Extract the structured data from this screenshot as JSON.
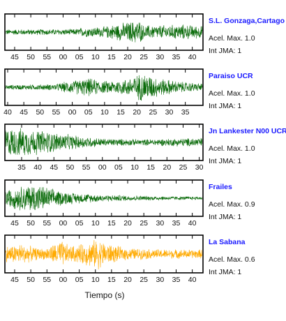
{
  "chart_data": {
    "type": "line",
    "xlabel": "Tiempo (s)",
    "panels": [
      {
        "station": "S.L. Gonzaga,Cartago",
        "acel_label": "Acel. Max. 1.0",
        "jma_label": "Int JMA: 1",
        "color": "#0a6b0a",
        "tick_labels": [
          "45",
          "50",
          "55",
          "00",
          "05",
          "10",
          "15",
          "20",
          "25",
          "30",
          "35",
          "40"
        ],
        "amplitude": [
          [
            0,
            0.18
          ],
          [
            0.35,
            0.2
          ],
          [
            0.4,
            0.32
          ],
          [
            0.5,
            0.35
          ],
          [
            0.55,
            0.5
          ],
          [
            0.68,
            0.8
          ],
          [
            0.7,
            0.45
          ],
          [
            0.8,
            0.45
          ],
          [
            0.9,
            0.5
          ],
          [
            1,
            0.4
          ]
        ]
      },
      {
        "station": "Paraiso UCR",
        "acel_label": "Acel. Max. 1.0",
        "jma_label": "Int JMA: 1",
        "color": "#0a6b0a",
        "tick_labels": [
          "40",
          "45",
          "50",
          "55",
          "00",
          "05",
          "10",
          "15",
          "20",
          "25",
          "30",
          "35"
        ],
        "amplitude": [
          [
            0,
            0.15
          ],
          [
            0.25,
            0.2
          ],
          [
            0.3,
            0.35
          ],
          [
            0.42,
            0.6
          ],
          [
            0.5,
            0.4
          ],
          [
            0.6,
            0.5
          ],
          [
            0.7,
            0.95
          ],
          [
            0.78,
            0.6
          ],
          [
            0.9,
            0.35
          ],
          [
            1,
            0.25
          ]
        ]
      },
      {
        "station": "Jn Lankester N00 UCR",
        "acel_label": "Acel. Max. 1.0",
        "jma_label": "Int JMA: 1",
        "color": "#0a6b0a",
        "tick_labels": [
          "35",
          "40",
          "45",
          "50",
          "55",
          "00",
          "05",
          "10",
          "15",
          "20",
          "25",
          "30"
        ],
        "amplitude": [
          [
            0,
            0.95
          ],
          [
            0.1,
            0.9
          ],
          [
            0.2,
            0.75
          ],
          [
            0.35,
            0.45
          ],
          [
            0.5,
            0.25
          ],
          [
            0.7,
            0.2
          ],
          [
            0.85,
            0.25
          ],
          [
            1,
            0.3
          ]
        ]
      },
      {
        "station": "Frailes",
        "acel_label": "Acel. Max. 0.9",
        "jma_label": "Int JMA: 1",
        "color": "#0a6b0a",
        "tick_labels": [
          "45",
          "50",
          "55",
          "00",
          "05",
          "10",
          "15",
          "20",
          "25",
          "30",
          "35",
          "40"
        ],
        "amplitude": [
          [
            0,
            0.55
          ],
          [
            0.08,
            0.8
          ],
          [
            0.15,
            0.95
          ],
          [
            0.25,
            0.55
          ],
          [
            0.35,
            0.35
          ],
          [
            0.5,
            0.22
          ],
          [
            0.7,
            0.15
          ],
          [
            1,
            0.1
          ]
        ]
      },
      {
        "station": "La Sabana",
        "acel_label": "Acel. Max. 0.6",
        "jma_label": "Int JMA: 1",
        "color": "#ffaa00",
        "tick_labels": [
          "45",
          "50",
          "55",
          "00",
          "05",
          "10",
          "15",
          "20",
          "25",
          "30",
          "35",
          "40"
        ],
        "amplitude": [
          [
            0,
            0.5
          ],
          [
            0.08,
            0.65
          ],
          [
            0.15,
            0.4
          ],
          [
            0.2,
            0.35
          ],
          [
            0.28,
            0.85
          ],
          [
            0.33,
            0.5
          ],
          [
            0.38,
            0.6
          ],
          [
            0.47,
            0.95
          ],
          [
            0.52,
            0.65
          ],
          [
            0.6,
            0.4
          ],
          [
            0.75,
            0.3
          ],
          [
            1,
            0.28
          ]
        ]
      }
    ]
  }
}
